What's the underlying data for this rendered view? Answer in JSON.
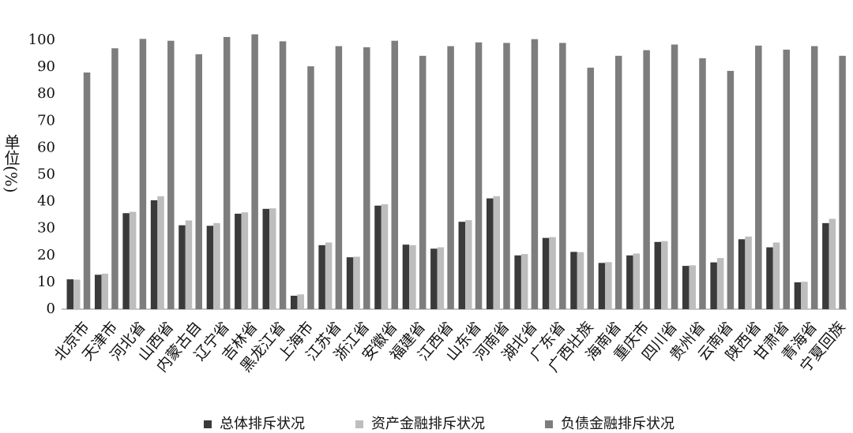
{
  "chart_data": {
    "type": "bar",
    "y_label": "单位(%)",
    "categories": [
      "北京市",
      "天津市",
      "河北省",
      "山西省",
      "内蒙古自",
      "辽宁省",
      "吉林省",
      "黑龙江省",
      "上海市",
      "江苏省",
      "浙江省",
      "安徽省",
      "福建省",
      "江西省",
      "山东省",
      "河南省",
      "湖北省",
      "广东省",
      "广西壮族",
      "海南省",
      "重庆市",
      "四川省",
      "贵州省",
      "云南省",
      "陕西省",
      "甘肃省",
      "青海省",
      "宁夏回族"
    ],
    "series": [
      {
        "name": "总体排斥状况",
        "color": "#3a3a3a",
        "values": [
          11.1,
          12.8,
          35.7,
          40.5,
          31.2,
          31,
          35.5,
          37.3,
          5,
          23.8,
          19.3,
          38.5,
          24,
          22.5,
          32.5,
          41.2,
          20,
          26.5,
          21.3,
          17.2,
          20,
          25,
          16.1,
          17.4,
          26,
          23,
          10,
          32
        ]
      },
      {
        "name": "资产金融排斥状况",
        "color": "#bdbdbd",
        "values": [
          11,
          13.2,
          36.2,
          42,
          33,
          32,
          36,
          37.5,
          5.5,
          24.8,
          19.5,
          39,
          23.8,
          23,
          33.1,
          42,
          20.5,
          26.8,
          21.2,
          17.5,
          20.7,
          25.3,
          16.3,
          19,
          27,
          24.8,
          10.2,
          33.6
        ]
      },
      {
        "name": "负债金融排斥状况",
        "color": "#7d7d7d",
        "values": [
          88,
          97,
          100.5,
          99.8,
          94.8,
          101.2,
          102.2,
          99.6,
          90.3,
          97.8,
          97.4,
          99.8,
          94.2,
          97.8,
          99.2,
          99,
          100.4,
          99,
          89.8,
          94.2,
          96.3,
          98.4,
          93.3,
          88.6,
          98,
          96.5,
          97.8,
          94.2
        ]
      }
    ],
    "ylim": [
      0,
      103
    ],
    "yticks": [
      0,
      10,
      20,
      30,
      40,
      50,
      60,
      70,
      80,
      90,
      100
    ],
    "legend": "bottom"
  }
}
